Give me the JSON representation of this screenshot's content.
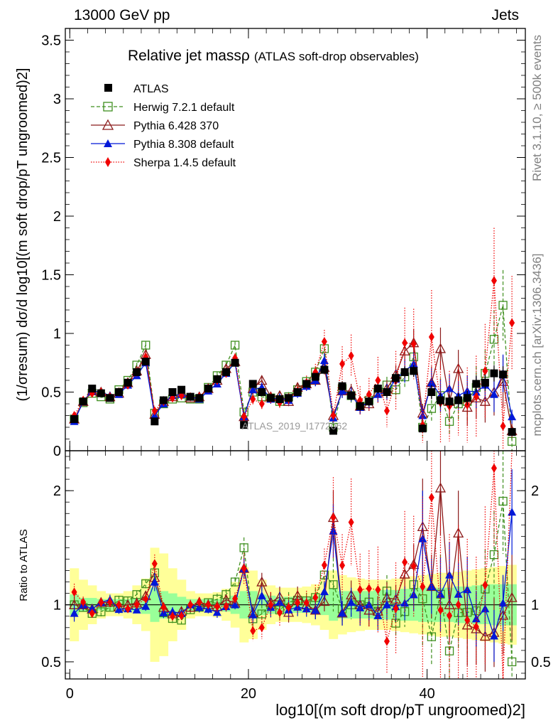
{
  "header": {
    "left": "13000 GeV pp",
    "right": "Jets",
    "title_main": "Relative jet massρ",
    "title_sub": "(ATLAS soft-drop observables)",
    "watermark": "ATLAS_2019_I1772062",
    "side_top": "Rivet 3.1.10, ≥ 500k events",
    "side_bottom": "mcplots.cern.ch [arXiv:1306.3436]"
  },
  "axes": {
    "ylabel_main": "(1/σresum) dσ/d log10[(m soft drop/pT ungroomed)2]",
    "ylabel_ratio": "Ratio to ATLAS",
    "xlabel": "log10[(m soft drop/pT ungroomed)2]"
  },
  "legend": {
    "atlas": "ATLAS",
    "herwig": "Herwig 7.2.1 default",
    "py6": "Pythia 6.428 370",
    "py8": "Pythia 8.308 default",
    "sherpa": "Sherpa 1.4.5 default"
  },
  "colors": {
    "herwig": "#3f8f1f",
    "py6": "#8b1a1a",
    "py8": "#0018d8",
    "sherpa": "#f00000",
    "band_inner": "#99ff99",
    "band_outer": "#ffff99"
  },
  "chart_data": {
    "type": "line",
    "title": "Relative jet massρ (ATLAS soft-drop observables)",
    "xlim": [
      -0.5,
      51
    ],
    "ylim_main": [
      0,
      3.6
    ],
    "ylim_ratio": [
      0.35,
      2.35
    ],
    "x_ticks": [
      0,
      20,
      40
    ],
    "x_tick_labels": [
      "0",
      "20",
      "40"
    ],
    "y_ticks_main": [
      0,
      0.5,
      1,
      1.5,
      2,
      2.5,
      3,
      3.5
    ],
    "y_tick_labels_main": [
      "0",
      "0.5",
      "1",
      "1.5",
      "2",
      "2.5",
      "3",
      "3.5"
    ],
    "y_ticks_ratio": [
      0.5,
      1,
      2
    ],
    "y_tick_labels_ratio": [
      "0.5",
      "1",
      "2"
    ],
    "x": [
      0.5,
      1.5,
      2.5,
      3.5,
      4.5,
      5.5,
      6.5,
      7.5,
      8.5,
      9.5,
      10.5,
      11.5,
      12.5,
      13.5,
      14.5,
      15.5,
      16.5,
      17.5,
      18.5,
      19.5,
      20.5,
      21.5,
      22.5,
      23.5,
      24.5,
      25.5,
      26.5,
      27.5,
      28.5,
      29.5,
      30.5,
      31.5,
      32.5,
      33.5,
      34.5,
      35.5,
      36.5,
      37.5,
      38.5,
      39.5,
      40.5,
      41.5,
      42.5,
      43.5,
      44.5,
      45.5,
      46.5,
      47.5,
      48.5,
      49.5
    ],
    "series": [
      {
        "name": "ATLAS",
        "key": "atlas",
        "values": [
          0.27,
          0.42,
          0.53,
          0.49,
          0.45,
          0.5,
          0.58,
          0.67,
          0.76,
          0.25,
          0.43,
          0.5,
          0.52,
          0.46,
          0.45,
          0.53,
          0.61,
          0.67,
          0.75,
          0.22,
          0.57,
          0.5,
          0.45,
          0.44,
          0.45,
          0.5,
          0.57,
          0.63,
          0.69,
          0.17,
          0.55,
          0.47,
          0.38,
          0.42,
          0.53,
          0.5,
          0.62,
          0.67,
          0.68,
          0.19,
          0.5,
          0.43,
          0.42,
          0.43,
          0.45,
          0.57,
          0.58,
          0.66,
          0.65,
          0.16
        ],
        "err": [
          0.02,
          0.02,
          0.02,
          0.02,
          0.02,
          0.02,
          0.02,
          0.02,
          0.02,
          0.02,
          0.02,
          0.02,
          0.02,
          0.02,
          0.02,
          0.02,
          0.02,
          0.02,
          0.02,
          0.02,
          0.03,
          0.03,
          0.03,
          0.03,
          0.03,
          0.03,
          0.03,
          0.03,
          0.03,
          0.02,
          0.04,
          0.04,
          0.04,
          0.04,
          0.04,
          0.05,
          0.05,
          0.05,
          0.05,
          0.03,
          0.06,
          0.06,
          0.06,
          0.06,
          0.06,
          0.07,
          0.07,
          0.07,
          0.07,
          0.03
        ]
      },
      {
        "name": "Herwig 7.2.1 default",
        "key": "herwig",
        "values": [
          0.27,
          0.41,
          0.49,
          0.46,
          0.44,
          0.52,
          0.6,
          0.73,
          0.9,
          0.32,
          0.4,
          0.44,
          0.45,
          0.44,
          0.44,
          0.54,
          0.64,
          0.73,
          0.9,
          0.33,
          0.5,
          0.46,
          0.45,
          0.42,
          0.46,
          0.52,
          0.59,
          0.67,
          0.87,
          0.2,
          0.53,
          0.47,
          0.38,
          0.43,
          0.5,
          0.56,
          0.52,
          0.63,
          0.8,
          0.2,
          0.36,
          0.47,
          0.25,
          0.4,
          0.42,
          0.54,
          0.66,
          0.95,
          1.24,
          0.08
        ],
        "err": [
          0.02,
          0.02,
          0.02,
          0.02,
          0.02,
          0.02,
          0.02,
          0.02,
          0.03,
          0.02,
          0.02,
          0.02,
          0.02,
          0.02,
          0.02,
          0.02,
          0.03,
          0.03,
          0.03,
          0.02,
          0.04,
          0.04,
          0.04,
          0.04,
          0.04,
          0.04,
          0.04,
          0.05,
          0.06,
          0.04,
          0.06,
          0.06,
          0.06,
          0.06,
          0.07,
          0.07,
          0.08,
          0.09,
          0.1,
          0.08,
          0.12,
          0.15,
          0.12,
          0.14,
          0.16,
          0.18,
          0.2,
          0.25,
          0.3,
          0.08
        ]
      },
      {
        "name": "Pythia 6.428 370",
        "key": "py6",
        "values": [
          0.27,
          0.42,
          0.51,
          0.5,
          0.46,
          0.49,
          0.58,
          0.68,
          0.82,
          0.31,
          0.42,
          0.46,
          0.49,
          0.45,
          0.46,
          0.53,
          0.6,
          0.7,
          0.76,
          0.29,
          0.53,
          0.6,
          0.46,
          0.47,
          0.42,
          0.54,
          0.57,
          0.6,
          0.71,
          0.3,
          0.51,
          0.51,
          0.38,
          0.4,
          0.5,
          0.53,
          0.65,
          0.85,
          0.92,
          0.32,
          0.58,
          0.87,
          0.42,
          0.7,
          0.37,
          0.45,
          0.42,
          0.5,
          0.59,
          0.17
        ],
        "err": [
          0.02,
          0.02,
          0.02,
          0.02,
          0.02,
          0.02,
          0.02,
          0.02,
          0.03,
          0.02,
          0.02,
          0.02,
          0.02,
          0.02,
          0.02,
          0.02,
          0.03,
          0.03,
          0.03,
          0.02,
          0.04,
          0.04,
          0.04,
          0.04,
          0.04,
          0.04,
          0.04,
          0.05,
          0.06,
          0.04,
          0.06,
          0.06,
          0.06,
          0.06,
          0.07,
          0.07,
          0.08,
          0.1,
          0.12,
          0.08,
          0.14,
          0.18,
          0.14,
          0.16,
          0.16,
          0.18,
          0.18,
          0.2,
          0.22,
          0.06
        ]
      },
      {
        "name": "Pythia 8.308 default",
        "key": "py8",
        "values": [
          0.25,
          0.42,
          0.51,
          0.5,
          0.47,
          0.48,
          0.56,
          0.64,
          0.75,
          0.3,
          0.4,
          0.47,
          0.48,
          0.46,
          0.44,
          0.51,
          0.57,
          0.66,
          0.75,
          0.29,
          0.52,
          0.54,
          0.44,
          0.45,
          0.43,
          0.49,
          0.55,
          0.6,
          0.77,
          0.28,
          0.51,
          0.48,
          0.37,
          0.42,
          0.48,
          0.5,
          0.61,
          0.68,
          0.74,
          0.3,
          0.58,
          0.47,
          0.53,
          0.47,
          0.51,
          0.5,
          0.56,
          0.48,
          0.66,
          0.29
        ],
        "err": [
          0.02,
          0.02,
          0.02,
          0.02,
          0.02,
          0.02,
          0.02,
          0.02,
          0.03,
          0.02,
          0.02,
          0.02,
          0.02,
          0.02,
          0.02,
          0.02,
          0.03,
          0.03,
          0.03,
          0.02,
          0.04,
          0.04,
          0.04,
          0.04,
          0.04,
          0.04,
          0.04,
          0.05,
          0.06,
          0.04,
          0.06,
          0.06,
          0.06,
          0.06,
          0.07,
          0.07,
          0.08,
          0.1,
          0.1,
          0.08,
          0.12,
          0.14,
          0.12,
          0.12,
          0.13,
          0.14,
          0.14,
          0.15,
          0.16,
          0.06
        ]
      },
      {
        "name": "Sherpa 1.4.5 default",
        "key": "sherpa",
        "values": [
          0.3,
          0.43,
          0.49,
          0.5,
          0.46,
          0.5,
          0.56,
          0.67,
          0.8,
          0.34,
          0.42,
          0.45,
          0.47,
          0.46,
          0.46,
          0.53,
          0.6,
          0.66,
          0.79,
          0.29,
          0.44,
          0.4,
          0.45,
          0.41,
          0.44,
          0.51,
          0.58,
          0.67,
          0.93,
          0.3,
          0.74,
          0.81,
          0.43,
          0.48,
          0.6,
          0.34,
          0.6,
          0.92,
          0.91,
          0.22,
          0.97,
          0.41,
          0.38,
          0.43,
          0.39,
          0.46,
          0.68,
          1.45,
          0.21,
          1.09
        ],
        "err": [
          0.02,
          0.02,
          0.02,
          0.02,
          0.02,
          0.02,
          0.02,
          0.03,
          0.03,
          0.02,
          0.02,
          0.02,
          0.02,
          0.02,
          0.02,
          0.02,
          0.03,
          0.03,
          0.04,
          0.03,
          0.05,
          0.05,
          0.05,
          0.05,
          0.05,
          0.05,
          0.06,
          0.07,
          0.1,
          0.06,
          0.15,
          0.18,
          0.12,
          0.14,
          0.2,
          0.14,
          0.25,
          0.3,
          0.3,
          0.15,
          0.4,
          0.35,
          0.3,
          0.3,
          0.32,
          0.35,
          0.4,
          0.45,
          0.2,
          0.4
        ]
      }
    ],
    "band_inner_halfwidth": [
      0.09,
      0.06,
      0.06,
      0.05,
      0.05,
      0.05,
      0.05,
      0.06,
      0.08,
      0.15,
      0.12,
      0.1,
      0.07,
      0.05,
      0.05,
      0.05,
      0.05,
      0.06,
      0.08,
      0.12,
      0.12,
      0.09,
      0.08,
      0.07,
      0.07,
      0.07,
      0.07,
      0.08,
      0.09,
      0.14,
      0.12,
      0.12,
      0.12,
      0.12,
      0.13,
      0.13,
      0.13,
      0.14,
      0.14,
      0.15,
      0.15,
      0.15,
      0.15,
      0.16,
      0.16,
      0.17,
      0.17,
      0.18,
      0.18,
      0.18
    ],
    "band_outer_halfwidth": [
      0.32,
      0.22,
      0.17,
      0.12,
      0.1,
      0.1,
      0.12,
      0.17,
      0.23,
      0.5,
      0.45,
      0.32,
      0.22,
      0.12,
      0.1,
      0.1,
      0.11,
      0.14,
      0.2,
      0.33,
      0.3,
      0.22,
      0.17,
      0.15,
      0.15,
      0.15,
      0.16,
      0.18,
      0.22,
      0.3,
      0.26,
      0.24,
      0.23,
      0.22,
      0.22,
      0.22,
      0.23,
      0.24,
      0.25,
      0.26,
      0.27,
      0.28,
      0.28,
      0.29,
      0.3,
      0.31,
      0.32,
      0.33,
      0.34,
      0.35
    ]
  }
}
